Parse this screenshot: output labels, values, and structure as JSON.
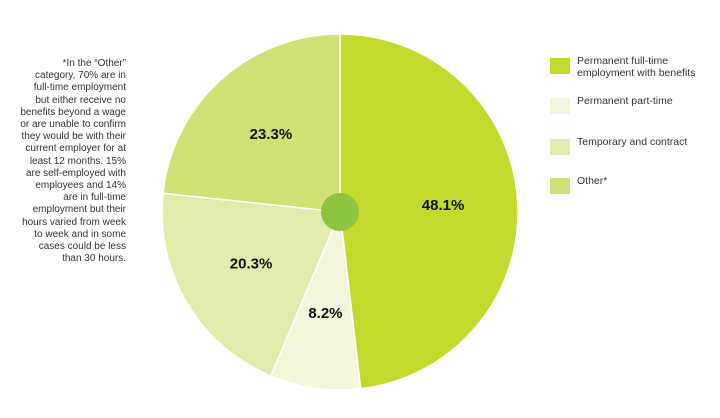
{
  "chart_data": {
    "type": "pie",
    "note": "*In the “Other” category, 70% are in full-time employment but either receive no benefits beyond a wage or are unable to confirm they would be with their current employer for at least 12 months. 15% are self-employed with employees and 14% are in full-time employment but their hours varied from week to week and in some cases could be less than 30 hours.",
    "categories": [
      "Permanent full-time employment with benefits",
      "Permanent part-time",
      "Temporary and contract",
      "Other*"
    ],
    "values": [
      48.1,
      8.2,
      20.3,
      23.3
    ],
    "value_labels": [
      "48.1%",
      "8.2%",
      "20.3%",
      "23.3%"
    ],
    "colors": [
      "#c4d92e",
      "#f3f6da",
      "#e3ebac",
      "#d0e075"
    ],
    "center_color": "#8cc43f"
  }
}
